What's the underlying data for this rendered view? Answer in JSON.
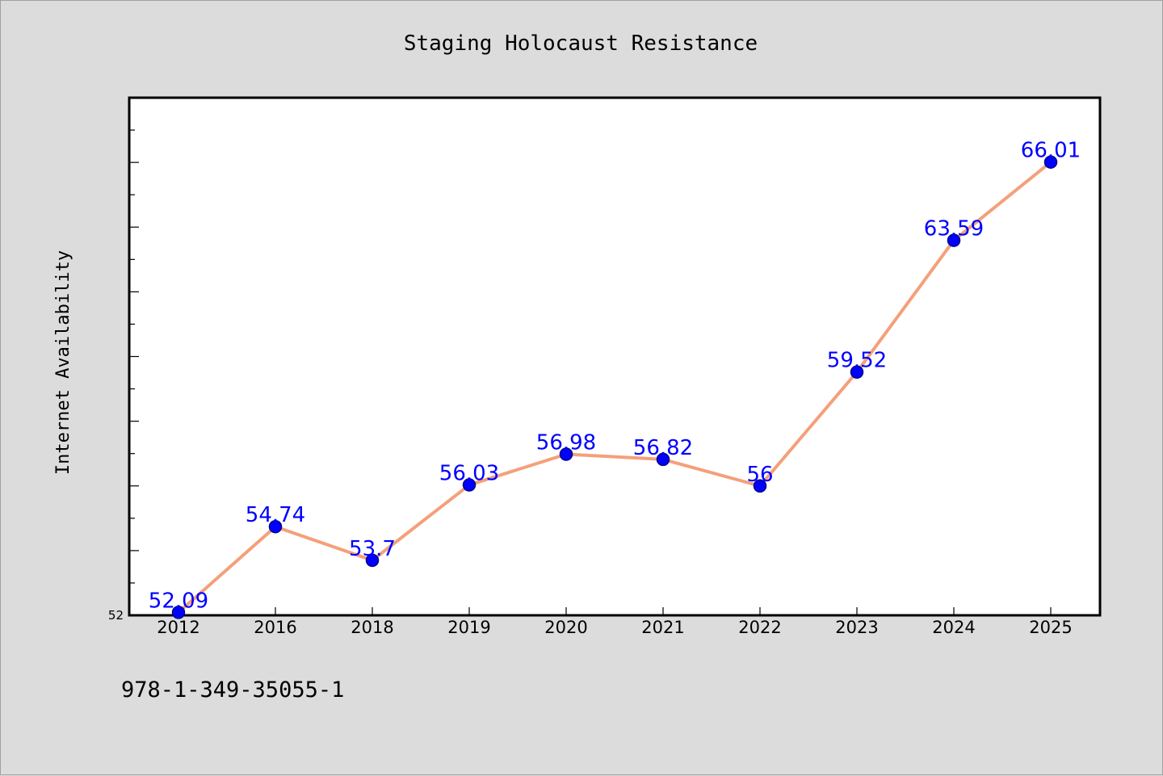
{
  "footer_code": "978-1-349-35055-1",
  "colors": {
    "background": "#dcdcdc",
    "plot_background": "#ffffff",
    "line": "#f4a07a",
    "marker_fill": "#0000ff",
    "marker_stroke": "#00008b",
    "data_label": "#0000ff"
  },
  "chart_data": {
    "type": "line",
    "title": "Staging Holocaust Resistance",
    "xlabel": "",
    "ylabel": "Internet Availability",
    "categories": [
      "2012",
      "2016",
      "2018",
      "2019",
      "2020",
      "2021",
      "2022",
      "2023",
      "2024",
      "2025"
    ],
    "series": [
      {
        "values": [
          52.09,
          54.74,
          53.7,
          56.03,
          56.98,
          56.82,
          56,
          59.52,
          63.59,
          66.01
        ],
        "labels": [
          "52.09",
          "54.74",
          "53.7",
          "56.03",
          "56.98",
          "56.82",
          "56",
          "59.52",
          "63.59",
          "66.01"
        ]
      }
    ],
    "ylim": [
      52,
      68
    ],
    "yticks_labeled": [
      "52"
    ],
    "y_minor_step": 1,
    "grid": false,
    "legend": "none",
    "markers": "circle"
  }
}
